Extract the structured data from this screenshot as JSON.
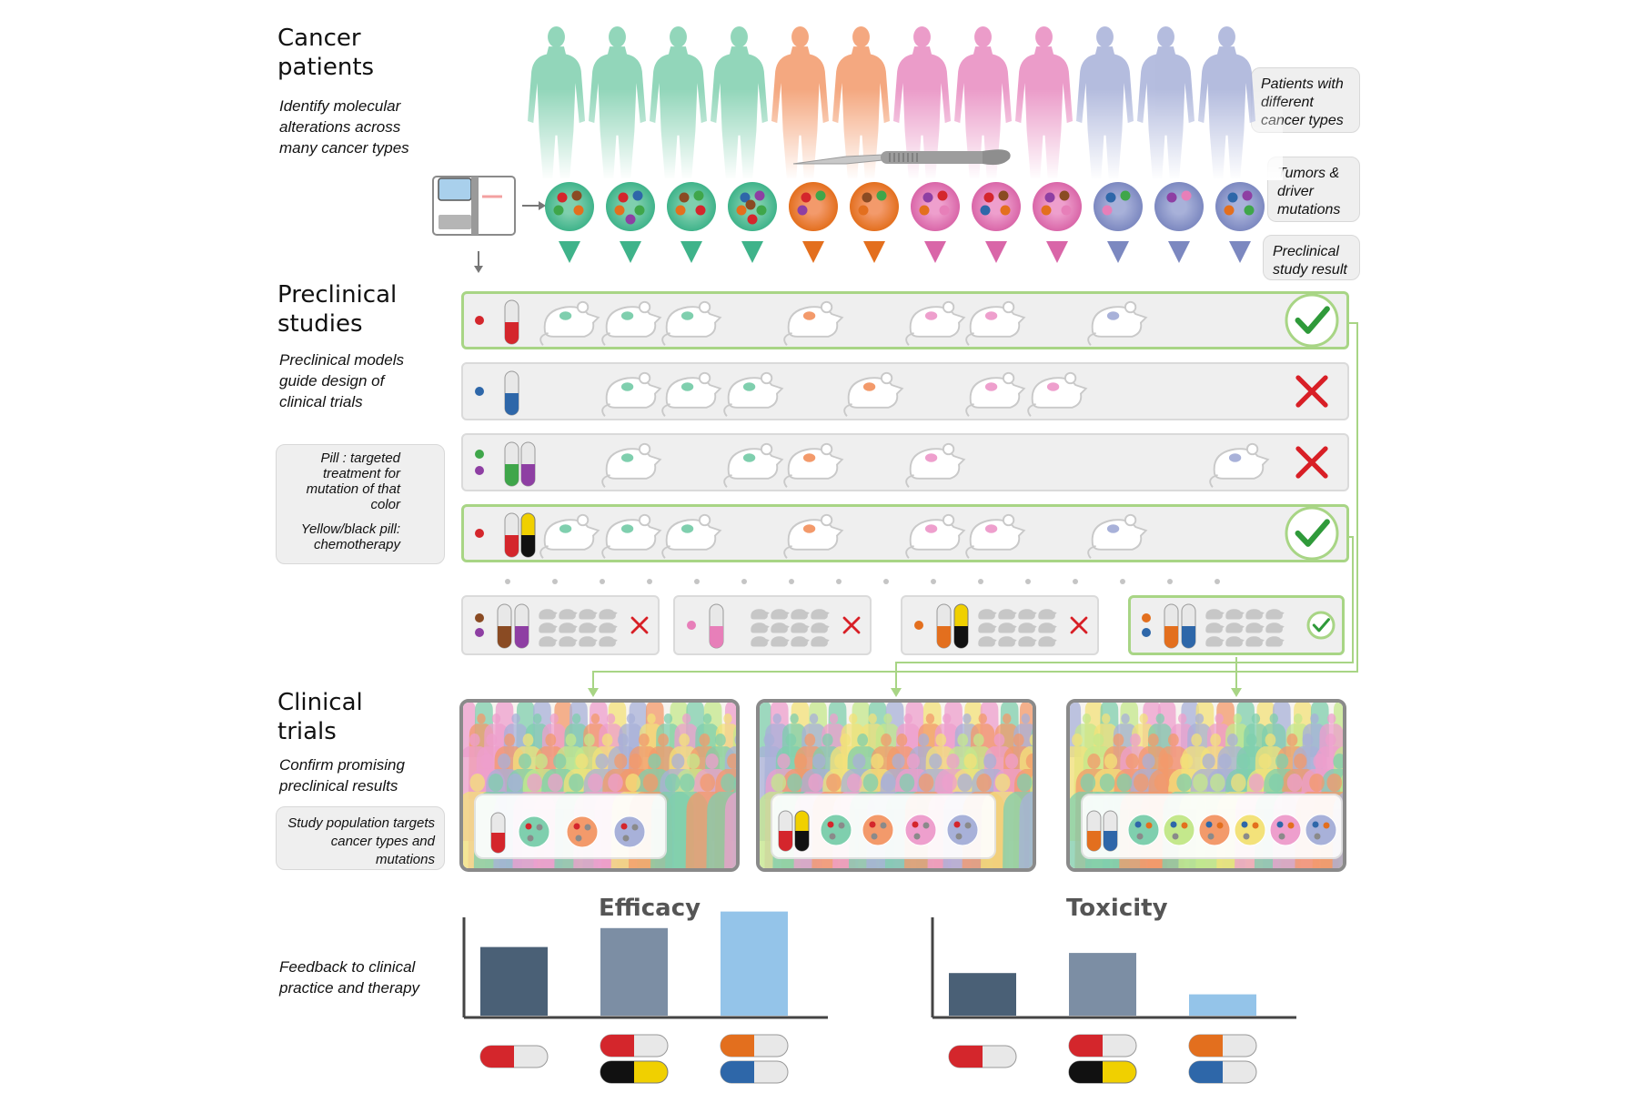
{
  "sections": {
    "patients": {
      "title": "Cancer patients",
      "desc": "Identify molecular alterations across many cancer types"
    },
    "preclinical": {
      "title": "Preclinical studies",
      "desc": "Preclinical models guide design of clinical trials"
    },
    "clinical": {
      "title": "Clinical trials",
      "desc": "Confirm promising preclinical results"
    },
    "feedback": {
      "desc": "Feedback to clinical practice and therapy"
    }
  },
  "callouts": {
    "patients_types": "Patients with different cancer types",
    "tumors": "Tumors & driver mutations",
    "study_result": "Preclinical study result",
    "pill_targeted": "Pill : targeted treatment for mutation of that color",
    "pill_chemo": "Yellow/black pill: chemotherapy",
    "study_population": "Study population targets cancer types and mutations"
  },
  "colors": {
    "green": "#7fcfae",
    "orange": "#f39a6b",
    "pink": "#e88bc0",
    "blue": "#a8b1d9",
    "check": "#2f9a3a",
    "cross": "#d81f26",
    "ok_border": "#a8d585"
  },
  "charts": [
    {
      "title": "Efficacy",
      "values": [
        0.58,
        0.74,
        0.88
      ],
      "bar_colors": [
        "#4a6076",
        "#7c8ea4",
        "#94c4e9"
      ]
    },
    {
      "title": "Toxicity",
      "values": [
        0.36,
        0.53,
        0.18
      ],
      "bar_colors": [
        "#4a6076",
        "#7c8ea4",
        "#94c4e9"
      ]
    }
  ],
  "preclinical_results": [
    "pass",
    "fail",
    "fail",
    "pass"
  ],
  "mini_results": [
    "fail",
    "fail",
    "fail",
    "pass"
  ]
}
